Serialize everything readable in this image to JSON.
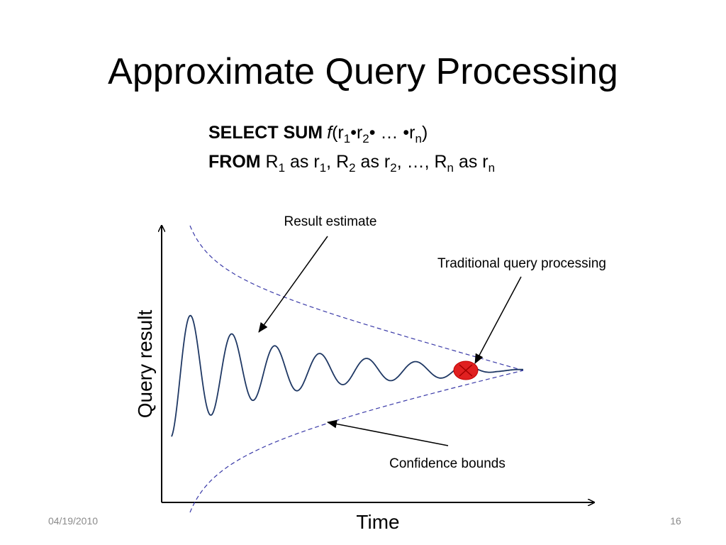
{
  "title": "Approximate Query Processing",
  "query": {
    "line1": [
      "SELECT SUM",
      "f",
      "(r",
      "1",
      "•r",
      "2",
      "• … •r",
      "n",
      ")"
    ],
    "line2": [
      "FROM",
      " R",
      "1",
      " as r",
      "1",
      ", R",
      "2",
      " as r",
      "2",
      ", …, R",
      "n",
      " as r",
      "n"
    ]
  },
  "diagram": {
    "y_axis_label": "Query result",
    "x_axis_label": "Time",
    "annotations": [
      "Result estimate",
      "Traditional query processing",
      "Confidence bounds"
    ]
  },
  "footer": {
    "date": "04/19/2010",
    "page": "16"
  }
}
